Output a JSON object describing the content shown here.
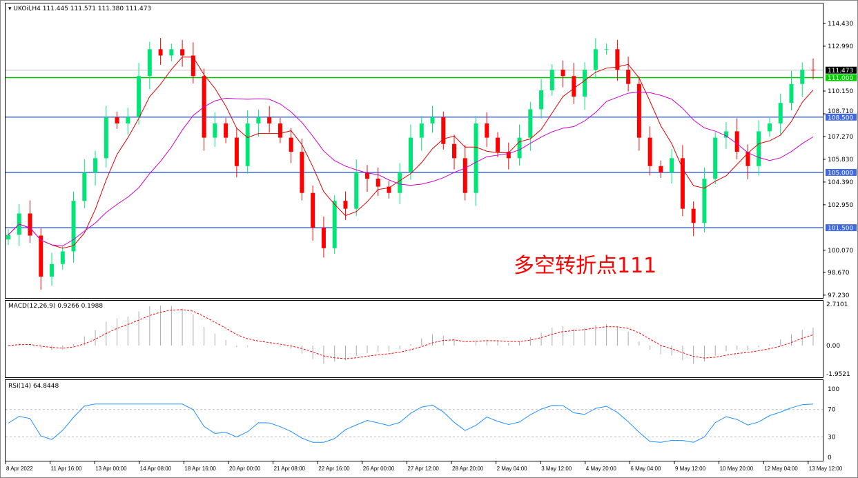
{
  "header": {
    "symbol": "UKOil,H4",
    "ohlc": "111.445 111.571 111.380 111.473"
  },
  "annotation": "多空转折点111",
  "macd": {
    "label": "MACD(12,26,9) 0.9266 0.1988",
    "ticks": [
      "2.7101",
      "0.00",
      "-1.9521"
    ]
  },
  "rsi": {
    "label": "RSI(14) 64.8448",
    "ticks": [
      "100",
      "70",
      "30",
      "0"
    ]
  },
  "price_axis": [
    "114.430",
    "112.990",
    "110.150",
    "108.710",
    "107.270",
    "105.830",
    "104.390",
    "102.950",
    "100.070",
    "98.670",
    "97.230"
  ],
  "price_lines": [
    {
      "value": 111.473,
      "label": "111.473",
      "color": "#c0c0c0",
      "tag_bg": "#000000"
    },
    {
      "value": 111.0,
      "label": "111.000",
      "color": "#00c000",
      "tag_bg": "#00cc00"
    },
    {
      "value": 108.5,
      "label": "108.500",
      "color": "#4169e1",
      "tag_bg": "#4169e1"
    },
    {
      "value": 105.0,
      "label": "105.000",
      "color": "#4169e1",
      "tag_bg": "#4169e1"
    },
    {
      "value": 101.5,
      "label": "101.500",
      "color": "#4169e1",
      "tag_bg": "#4169e1"
    }
  ],
  "time_axis": [
    "8 Apr 2022",
    "11 Apr 16:00",
    "13 Apr 00:00",
    "14 Apr 08:00",
    "18 Apr 16:00",
    "20 Apr 00:00",
    "21 Apr 08:00",
    "22 Apr 16:00",
    "26 Apr 00:00",
    "27 Apr 12:00",
    "28 Apr 20:00",
    "2 May 04:00",
    "3 May 12:00",
    "4 May 20:00",
    "6 May 04:00",
    "9 May 12:00",
    "10 May 20:00",
    "12 May 04:00",
    "13 May 12:00"
  ],
  "colors": {
    "bull": "#00e676",
    "bear": "#ff0000",
    "ma_fast": "#e00000",
    "ma_slow": "#cc00cc",
    "macd_signal": "#ff0000",
    "rsi": "#1e90ff"
  },
  "chart_data": {
    "type": "candlestick",
    "symbol": "UKOil",
    "timeframe": "H4",
    "ylim": [
      97.23,
      114.43
    ],
    "closes": [
      101.05,
      102.4,
      101.0,
      98.4,
      99.2,
      100.0,
      103.2,
      105.0,
      105.9,
      108.5,
      108.1,
      108.5,
      111.1,
      112.8,
      112.4,
      112.8,
      112.4,
      111.1,
      107.2,
      108.1,
      107.2,
      105.4,
      108.1,
      108.5,
      108.1,
      107.2,
      106.3,
      103.7,
      101.5,
      100.2,
      103.2,
      102.7,
      105.0,
      104.6,
      104.1,
      103.7,
      105.0,
      107.2,
      108.1,
      108.5,
      106.8,
      105.9,
      103.7,
      108.1,
      107.2,
      106.3,
      105.9,
      107.2,
      109.0,
      110.2,
      111.5,
      111.1,
      109.8,
      111.5,
      112.8,
      112.8,
      111.5,
      110.6,
      107.2,
      105.4,
      105.0,
      105.9,
      102.7,
      101.8,
      104.6,
      107.2,
      107.6,
      106.3,
      105.4,
      107.6,
      108.1,
      109.4,
      110.6,
      111.5,
      111.47
    ]
  }
}
